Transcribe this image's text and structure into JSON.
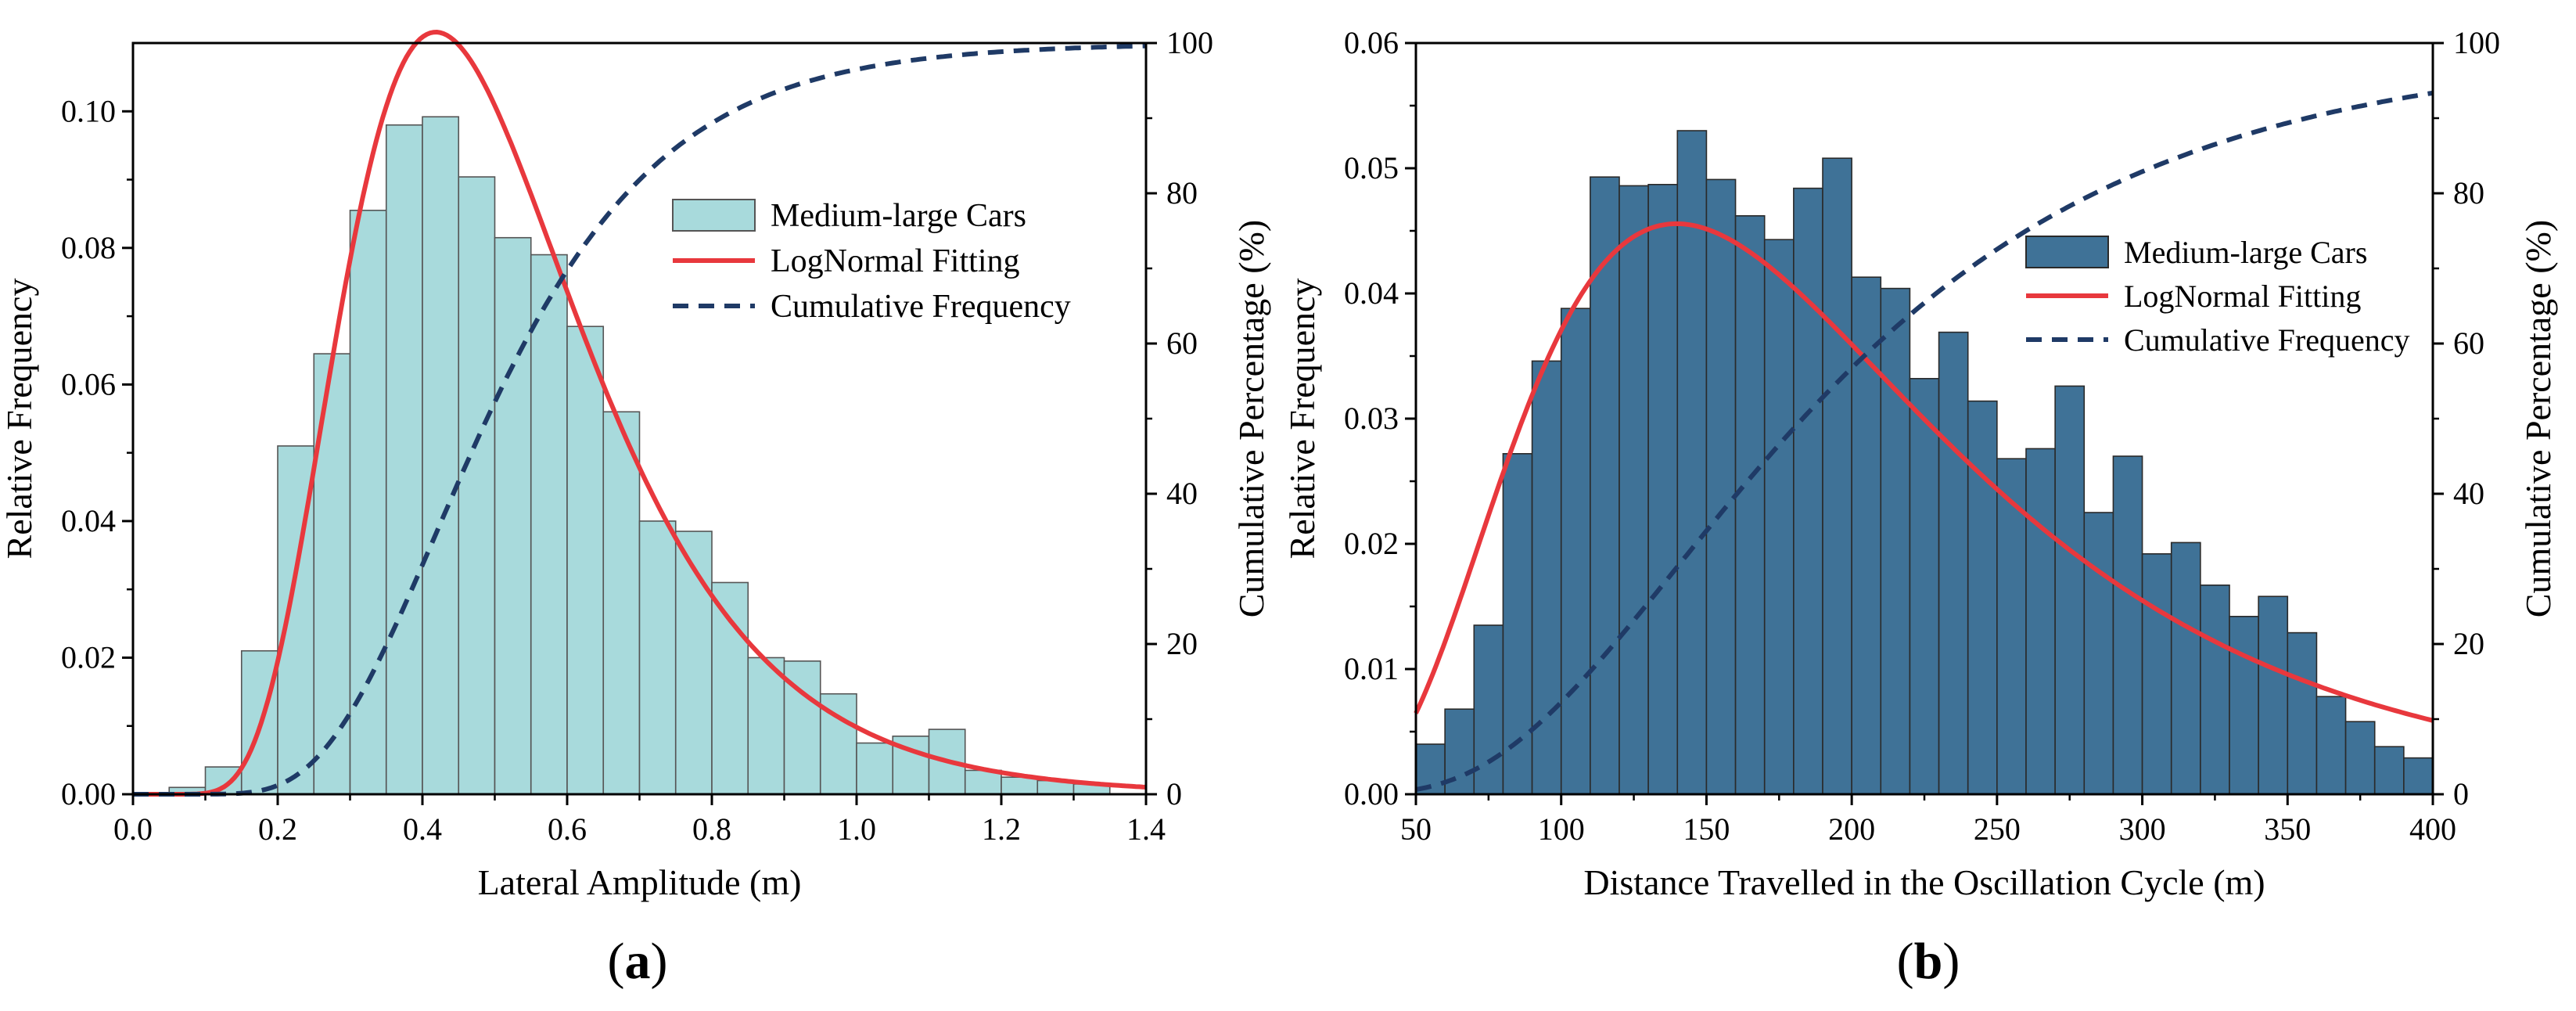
{
  "chart_data": [
    {
      "type": "bar",
      "panel_label": "a",
      "xlabel": "Lateral Amplitude (m)",
      "ylabel": "Relative Frequency",
      "y2label": "Cumulative Percentage (%)",
      "xlim": [
        0.0,
        1.4
      ],
      "ylim": [
        0.0,
        0.11
      ],
      "y2lim": [
        0,
        100
      ],
      "xticks": [
        "0.0",
        "0.2",
        "0.4",
        "0.6",
        "0.8",
        "1.0",
        "1.2",
        "1.4"
      ],
      "yticks": [
        "0.00",
        "0.02",
        "0.04",
        "0.06",
        "0.08",
        "0.10"
      ],
      "y2ticks": [
        "0",
        "20",
        "40",
        "60",
        "80",
        "100"
      ],
      "bin_start": 0.05,
      "bin_width": 0.05,
      "bar_color": "#a8dadc",
      "bar_edge": "#555555",
      "values": [
        0.001,
        0.004,
        0.021,
        0.051,
        0.0645,
        0.0855,
        0.098,
        0.0992,
        0.0904,
        0.0815,
        0.079,
        0.0685,
        0.056,
        0.04,
        0.0385,
        0.031,
        0.02,
        0.0195,
        0.0147,
        0.0075,
        0.0085,
        0.0095,
        0.0035,
        0.0025,
        0.002,
        0.0015
      ],
      "fit": {
        "type": "lognormal",
        "mu": -0.715,
        "sigma": 0.395,
        "scale": 0.05,
        "color": "#e8383d"
      },
      "cumulative_color": "#1f3a66",
      "legend": [
        {
          "label": "Medium-large Cars",
          "kind": "bar"
        },
        {
          "label": "LogNormal Fitting",
          "kind": "line"
        },
        {
          "label": "Cumulative Frequency",
          "kind": "dash"
        }
      ],
      "legend_position": "right"
    },
    {
      "type": "bar",
      "panel_label": "b",
      "xlabel": "Distance Travelled in the Oscillation Cycle (m)",
      "ylabel": "Relative Frequency",
      "y2label": "Cumulative Percentage (%)",
      "xlim": [
        50,
        400
      ],
      "ylim": [
        0.0,
        0.06
      ],
      "y2lim": [
        0,
        100
      ],
      "xticks": [
        "50",
        "100",
        "150",
        "200",
        "250",
        "300",
        "350",
        "400"
      ],
      "yticks": [
        "0.00",
        "0.01",
        "0.02",
        "0.03",
        "0.04",
        "0.05",
        "0.06"
      ],
      "y2ticks": [
        "0",
        "20",
        "40",
        "60",
        "80",
        "100"
      ],
      "bin_start": 50,
      "bin_width": 10,
      "bar_color": "#3f7297",
      "bar_edge": "#2a2a2a",
      "values": [
        0.004,
        0.0068,
        0.0135,
        0.0272,
        0.0346,
        0.0388,
        0.0493,
        0.0486,
        0.0487,
        0.053,
        0.0491,
        0.0462,
        0.0443,
        0.0484,
        0.0508,
        0.0413,
        0.0404,
        0.0332,
        0.0369,
        0.0314,
        0.0268,
        0.0276,
        0.0326,
        0.0225,
        0.027,
        0.0192,
        0.0201,
        0.0167,
        0.0142,
        0.0158,
        0.0129,
        0.0078,
        0.0058,
        0.0038,
        0.0029
      ],
      "fit": {
        "type": "lognormal",
        "mu": 5.21,
        "sigma": 0.52,
        "scale": 9.5,
        "color": "#e8383d"
      },
      "cumulative_color": "#1f3a66",
      "legend": [
        {
          "label": "Medium-large Cars",
          "kind": "bar"
        },
        {
          "label": "LogNormal Fitting",
          "kind": "line"
        },
        {
          "label": "Cumulative Frequency",
          "kind": "dash"
        }
      ],
      "legend_position": "right"
    }
  ],
  "captions": [
    "a",
    "b"
  ]
}
